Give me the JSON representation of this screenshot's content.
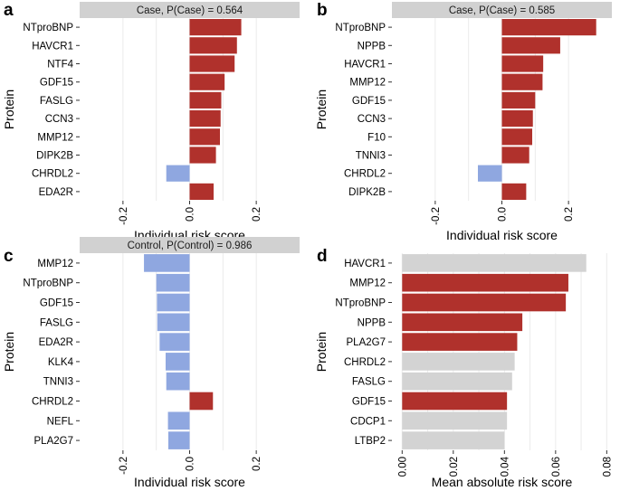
{
  "colors": {
    "positive": "#b0312c",
    "negative": "#8fa7e0",
    "neutral": "#d3d3d3",
    "strip": "#d1d1d1",
    "grid": "#ebebeb"
  },
  "chart_data": [
    {
      "id": "a",
      "panel_label": "a",
      "type": "bar",
      "orientation": "horizontal",
      "strip_title": "Case, P(Case) = 0.564",
      "ylabel": "Protein",
      "xlabel": "Individual risk score",
      "xlim": [
        -0.33,
        0.33
      ],
      "xticks": [
        -0.2,
        0.0,
        0.2
      ],
      "xtick_labels": [
        "-0.2",
        "0.0",
        "0.2"
      ],
      "categories": [
        "NTproBNP",
        "HAVCR1",
        "NTF4",
        "GDF15",
        "FASLG",
        "CCN3",
        "MMP12",
        "DIPK2B",
        "CHRDL2",
        "EDA2R"
      ],
      "values": [
        0.155,
        0.142,
        0.135,
        0.105,
        0.095,
        0.093,
        0.091,
        0.079,
        -0.07,
        0.072
      ]
    },
    {
      "id": "b",
      "panel_label": "b",
      "type": "bar",
      "orientation": "horizontal",
      "strip_title": "Case, P(Case) = 0.585",
      "ylabel": "Protein",
      "xlabel": "Individual risk score",
      "xlim": [
        -0.33,
        0.33
      ],
      "xticks": [
        -0.2,
        0.0,
        0.2
      ],
      "xtick_labels": [
        "-0.2",
        "0.0",
        "0.2"
      ],
      "categories": [
        "NTproBNP",
        "NPPB",
        "HAVCR1",
        "MMP12",
        "GDF15",
        "CCN3",
        "F10",
        "TNNI3",
        "CHRDL2",
        "DIPK2B"
      ],
      "values": [
        0.283,
        0.175,
        0.124,
        0.122,
        0.1,
        0.093,
        0.091,
        0.082,
        -0.072,
        0.073
      ]
    },
    {
      "id": "c",
      "panel_label": "c",
      "type": "bar",
      "orientation": "horizontal",
      "strip_title": "Control, P(Control) = 0.986",
      "ylabel": "Protein",
      "xlabel": "Individual risk score",
      "xlim": [
        -0.33,
        0.33
      ],
      "xticks": [
        -0.2,
        0.0,
        0.2
      ],
      "xtick_labels": [
        "-0.2",
        "0.0",
        "0.2"
      ],
      "categories": [
        "MMP12",
        "NTproBNP",
        "GDF15",
        "FASLG",
        "EDA2R",
        "KLK4",
        "TNNI3",
        "CHRDL2",
        "NEFL",
        "PLA2G7"
      ],
      "values": [
        -0.137,
        -0.1,
        -0.098,
        -0.097,
        -0.09,
        -0.072,
        -0.07,
        0.07,
        -0.065,
        -0.064
      ]
    },
    {
      "id": "d",
      "panel_label": "d",
      "type": "bar",
      "orientation": "horizontal",
      "ylabel": "Protein",
      "xlabel": "Mean absolute risk score",
      "xlim": [
        -0.004,
        0.082
      ],
      "xticks": [
        0.0,
        0.02,
        0.04,
        0.06,
        0.08
      ],
      "xtick_labels": [
        "0.00",
        "0.02",
        "0.04",
        "0.06",
        "0.08"
      ],
      "categories": [
        "HAVCR1",
        "MMP12",
        "NTproBNP",
        "NPPB",
        "PLA2G7",
        "CHRDL2",
        "FASLG",
        "GDF15",
        "CDCP1",
        "LTBP2"
      ],
      "values": [
        0.072,
        0.065,
        0.064,
        0.047,
        0.045,
        0.044,
        0.043,
        0.041,
        0.041,
        0.04
      ],
      "highlight": [
        false,
        true,
        true,
        true,
        true,
        false,
        false,
        true,
        false,
        false
      ]
    }
  ]
}
